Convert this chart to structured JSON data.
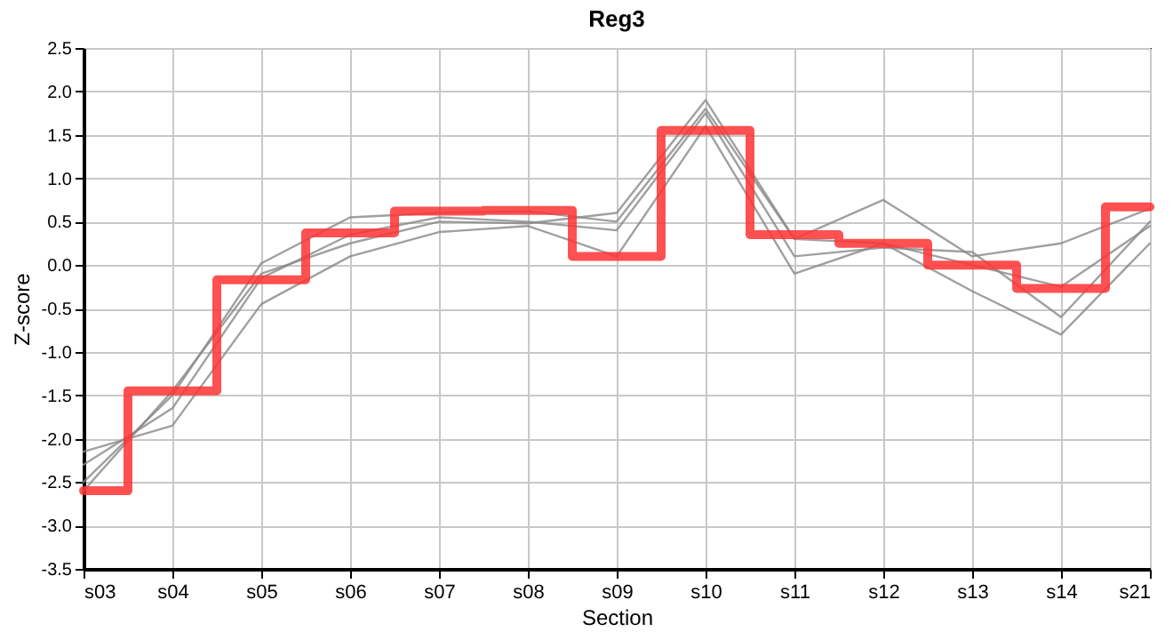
{
  "chart_data": {
    "type": "line",
    "title": "Reg3",
    "xlabel": "Section",
    "ylabel": "Z-score",
    "categories": [
      "s03",
      "s04",
      "s05",
      "s06",
      "s07",
      "s08",
      "s09",
      "s10",
      "s11",
      "s12",
      "s13",
      "s14",
      "s21"
    ],
    "series": [
      {
        "type": "line",
        "color": "#888888",
        "values": [
          -2.15,
          -1.85,
          -0.45,
          0.1,
          0.38,
          0.45,
          0.1,
          1.6,
          -0.1,
          0.25,
          -0.3,
          -0.8,
          0.25
        ]
      },
      {
        "type": "line",
        "color": "#888888",
        "values": [
          -2.3,
          -1.65,
          -0.15,
          0.35,
          0.55,
          0.5,
          0.4,
          1.75,
          0.1,
          0.2,
          0.15,
          -0.6,
          0.5
        ]
      },
      {
        "type": "line",
        "color": "#888888",
        "values": [
          -2.5,
          -1.5,
          0.02,
          0.55,
          0.6,
          0.62,
          0.5,
          1.8,
          0.3,
          0.75,
          0.1,
          0.25,
          0.65
        ]
      },
      {
        "type": "line",
        "color": "#888888",
        "values": [
          -2.6,
          -1.45,
          -0.1,
          0.25,
          0.5,
          0.48,
          0.6,
          1.9,
          0.3,
          0.25,
          0.0,
          -0.25,
          0.45
        ]
      },
      {
        "type": "step",
        "color": "#ff3333",
        "values": [
          -2.6,
          -1.45,
          -0.17,
          0.37,
          0.62,
          0.63,
          0.1,
          1.55,
          0.35,
          0.25,
          0.0,
          -0.27,
          0.67
        ]
      }
    ],
    "ylim": [
      -3.5,
      2.5
    ],
    "yticks": [
      -3.5,
      {
        "value": -3,
        "label": "-3.0"
      },
      -2.5,
      {
        "value": -2,
        "label": "-2.0"
      },
      -1.5,
      {
        "value": -1,
        "label": "-1.0"
      },
      -0.5,
      {
        "value": 0,
        "label": "0.0"
      },
      0.5,
      {
        "value": 1,
        "label": "1.0"
      },
      1.5,
      {
        "value": 2,
        "label": "2.0"
      },
      2.5
    ],
    "grid": true,
    "legend": false,
    "marker": "none",
    "line_style": "solid"
  }
}
